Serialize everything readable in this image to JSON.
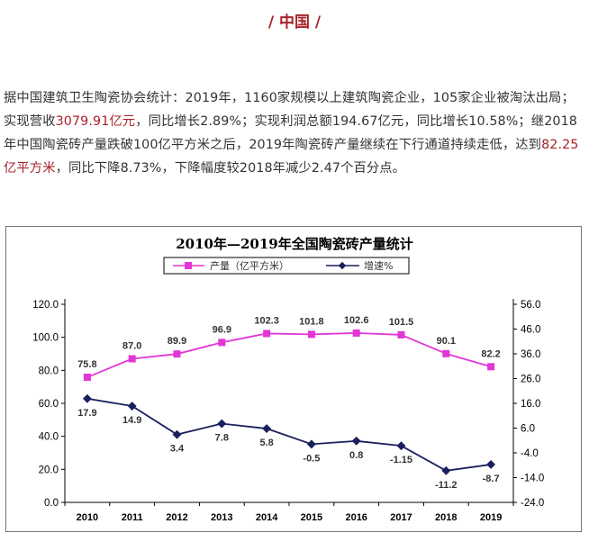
{
  "header": {
    "title": "/ 中国 /"
  },
  "paragraph": {
    "parts": [
      "据中国建筑卫生陶瓷协会统计：2019年，1160家规模以上建筑陶瓷企业，105家企业被淘汰出局；实现营收",
      "3079.91亿元",
      "，同比增长2.89%；实现利润总额194.67亿元，同比增长10.58%；继2018年中国陶瓷砖产量跌破100亿平方米之后，2019年陶瓷砖产量继续在下行通道持续走低，达到",
      "82.25亿平方米",
      "，同比下降8.73%，下降幅度较2018年减少2.47个百分点。"
    ]
  },
  "chart_data": {
    "type": "line",
    "title": "2010年—2019年全国陶瓷砖产量统计",
    "categories": [
      "2010",
      "2011",
      "2012",
      "2013",
      "2014",
      "2015",
      "2016",
      "2017",
      "2018",
      "2019"
    ],
    "series": [
      {
        "name": "产量（亿平方米）",
        "axis": "left",
        "color": "#e236d6",
        "values": [
          75.8,
          87.0,
          89.9,
          96.9,
          102.3,
          101.8,
          102.6,
          101.5,
          90.1,
          82.2
        ],
        "labels": [
          "75.8",
          "87.0",
          "89.9",
          "96.9",
          "102.3",
          "101.8",
          "102.6",
          "101.5",
          "90.1",
          "82.2"
        ]
      },
      {
        "name": "增速%",
        "axis": "right",
        "color": "#1a1f5e",
        "values": [
          17.9,
          14.9,
          3.4,
          7.8,
          5.8,
          -0.5,
          0.8,
          -1.15,
          -11.2,
          -8.7
        ],
        "labels": [
          "17.9",
          "14.9",
          "3.4",
          "7.8",
          "5.8",
          "-0.5",
          "0.8",
          "-1.15",
          "-11.2",
          "-8.7"
        ]
      }
    ],
    "y_left": {
      "range": [
        0,
        120
      ],
      "ticks": [
        "0.0",
        "20.0",
        "40.0",
        "60.0",
        "80.0",
        "100.0",
        "120.0"
      ]
    },
    "y_right": {
      "range": [
        -24,
        56
      ],
      "ticks": [
        "-24.0",
        "-14.0",
        "-4.0",
        "6.0",
        "16.0",
        "26.0",
        "36.0",
        "46.0",
        "56.0"
      ]
    },
    "legend": "top",
    "grid": false
  }
}
